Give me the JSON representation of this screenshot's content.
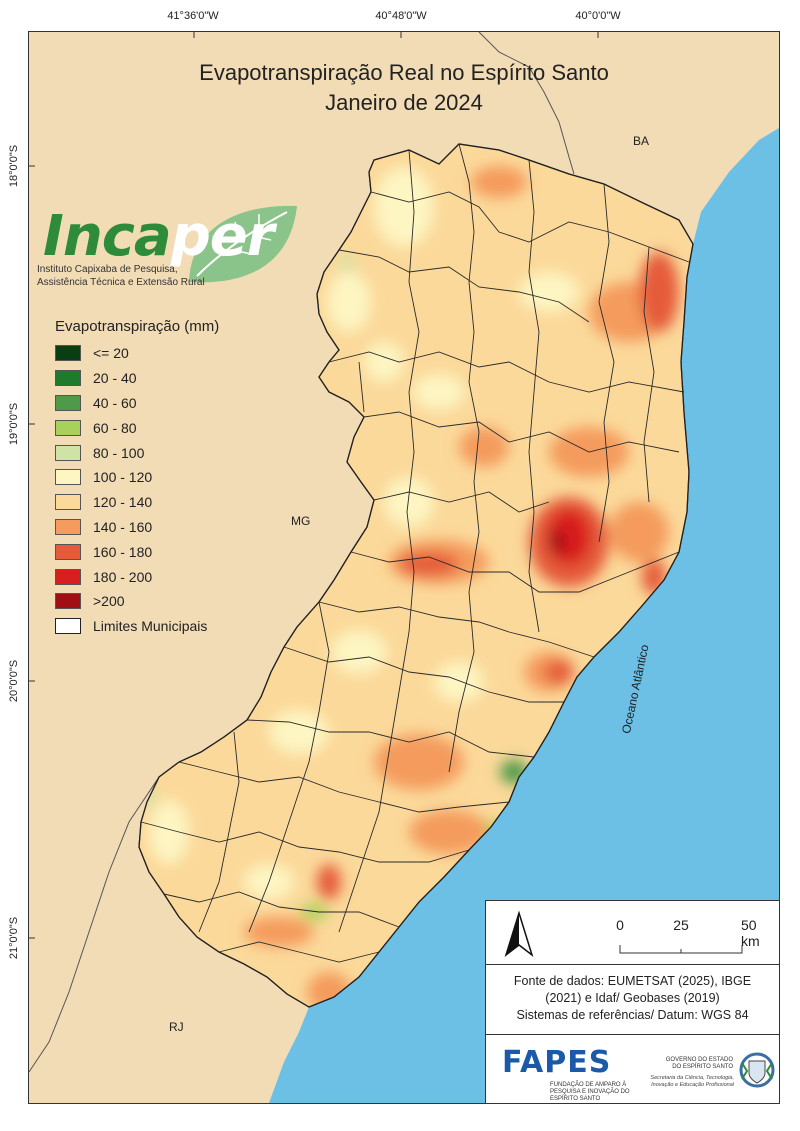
{
  "title": {
    "line1": "Evapotranspiração Real no Espírito Santo",
    "line2": "Janeiro de 2024"
  },
  "coordinates": {
    "longitudes": [
      "41°36'0\"W",
      "40°48'0\"W",
      "40°0'0\"W"
    ],
    "latitudes": [
      "18°0'0\"S",
      "19°0'0\"S",
      "20°0'0\"S",
      "21°0'0\"S"
    ]
  },
  "labels": {
    "ba": "BA",
    "mg": "MG",
    "rj": "RJ",
    "ocean": "Oceano Atlântico"
  },
  "logo": {
    "word_a": "Inca",
    "word_b": "per",
    "subtitle1": "Instituto Capixaba de Pesquisa,",
    "subtitle2": "Assistência Técnica e Extensão Rural"
  },
  "legend": {
    "title": "Evapotranspiração (mm)",
    "items": [
      {
        "label": "<= 20",
        "color": "#0a3d12"
      },
      {
        "label": "20 - 40",
        "color": "#1e7a2c"
      },
      {
        "label": "40 - 60",
        "color": "#4f9a4a"
      },
      {
        "label": "60 - 80",
        "color": "#a8d05a"
      },
      {
        "label": "80 - 100",
        "color": "#cfe3a6"
      },
      {
        "label": "100 - 120",
        "color": "#fdf5c2"
      },
      {
        "label": "120 - 140",
        "color": "#fbd99a"
      },
      {
        "label": "140 - 160",
        "color": "#f49b5d"
      },
      {
        "label": "160 - 180",
        "color": "#e55b3a"
      },
      {
        "label": "180 - 200",
        "color": "#d81e1e"
      },
      {
        "label": ">200",
        "color": "#a00f14"
      }
    ],
    "boundary_label": "Limites Municipais"
  },
  "scale": {
    "ticks": [
      "0",
      "25",
      "50 km"
    ]
  },
  "source": {
    "line1": "Fonte de dados: EUMETSAT (2025), IBGE",
    "line2": "(2021) e Idaf/ Geobases (2019)",
    "line3": "Sistemas de referências/ Datum: WGS 84"
  },
  "footer": {
    "fapes": "FAPES",
    "fapes_sub": "FUNDAÇÃO DE AMPARO À PESQUISA E INOVAÇÃO DO ESPÍRITO SANTO",
    "gov": "GOVERNO DO ESTADO DO ESPÍRITO SANTO",
    "gov_sub": "Secretaria da Ciência, Tecnologia, Inovação e Educação Profissional"
  },
  "colors": {
    "land": "#f2dcb6",
    "ocean": "#6cc0e5",
    "state_base": "#fbd99a"
  },
  "icons": [
    "north-arrow-icon",
    "incaper-leaf-icon",
    "es-coat-of-arms-icon"
  ]
}
